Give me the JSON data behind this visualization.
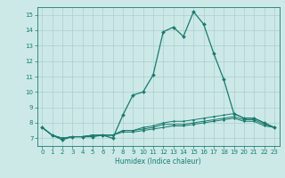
{
  "xlabel": "Humidex (Indice chaleur)",
  "x": [
    0,
    1,
    2,
    3,
    4,
    5,
    6,
    7,
    8,
    9,
    10,
    11,
    12,
    13,
    14,
    15,
    16,
    17,
    18,
    19,
    20,
    21,
    22,
    23
  ],
  "series": [
    [
      7.7,
      7.2,
      6.9,
      7.1,
      7.1,
      7.1,
      7.2,
      7.0,
      8.5,
      9.8,
      10.0,
      11.1,
      13.9,
      14.2,
      13.6,
      15.2,
      14.4,
      12.5,
      10.8,
      8.6,
      8.3,
      8.3,
      8.0,
      7.7
    ],
    [
      7.7,
      7.2,
      7.0,
      7.1,
      7.1,
      7.2,
      7.2,
      7.2,
      7.5,
      7.5,
      7.7,
      7.8,
      8.0,
      8.1,
      8.1,
      8.2,
      8.3,
      8.4,
      8.5,
      8.6,
      8.3,
      8.3,
      8.0,
      7.7
    ],
    [
      7.7,
      7.2,
      7.0,
      7.1,
      7.1,
      7.2,
      7.2,
      7.2,
      7.5,
      7.5,
      7.6,
      7.7,
      7.9,
      7.9,
      7.9,
      8.0,
      8.1,
      8.2,
      8.3,
      8.4,
      8.2,
      8.2,
      7.9,
      7.7
    ],
    [
      7.7,
      7.2,
      7.0,
      7.1,
      7.1,
      7.2,
      7.2,
      7.2,
      7.4,
      7.4,
      7.5,
      7.6,
      7.7,
      7.8,
      7.8,
      7.9,
      8.0,
      8.1,
      8.2,
      8.3,
      8.1,
      8.1,
      7.8,
      7.7
    ]
  ],
  "line_color": "#1a7a6e",
  "bg_color": "#cce9e8",
  "grid_color": "#aacfce",
  "ylim": [
    6.5,
    15.5
  ],
  "yticks": [
    7,
    8,
    9,
    10,
    11,
    12,
    13,
    14,
    15
  ],
  "xlim": [
    -0.5,
    23.5
  ],
  "xticks": [
    0,
    1,
    2,
    3,
    4,
    5,
    6,
    7,
    8,
    9,
    10,
    11,
    12,
    13,
    14,
    15,
    16,
    17,
    18,
    19,
    20,
    21,
    22,
    23
  ],
  "xlabel_fontsize": 5.5,
  "tick_fontsize": 5.0,
  "linewidth_main": 0.9,
  "linewidth_other": 0.7,
  "marker_size_main": 2.0,
  "marker_size_other": 1.2
}
